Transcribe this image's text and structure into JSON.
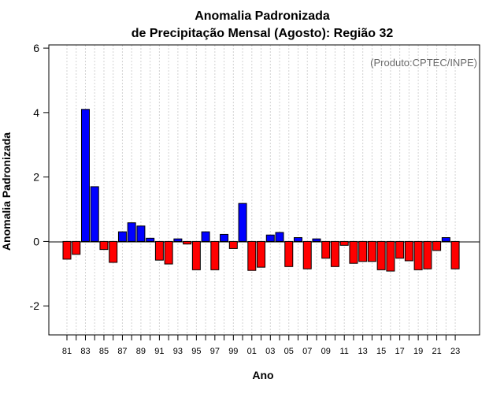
{
  "chart_data": {
    "type": "bar",
    "title_lines": [
      "Anomalia Padronizada",
      "de Precipitação Mensal (Agosto): Região 32"
    ],
    "xlabel": "Ano",
    "ylabel": "Anomalia Padronizada",
    "credit": "(Produto:CPTEC/INPE)",
    "ylim": [
      -2.9,
      6.1
    ],
    "yticks": [
      -2,
      0,
      2,
      4,
      6
    ],
    "grid": true,
    "years": [
      1981,
      1982,
      1983,
      1984,
      1985,
      1986,
      1987,
      1988,
      1989,
      1990,
      1991,
      1992,
      1993,
      1994,
      1995,
      1996,
      1997,
      1998,
      1999,
      2000,
      2001,
      2002,
      2003,
      2004,
      2005,
      2006,
      2007,
      2008,
      2009,
      2010,
      2011,
      2012,
      2013,
      2014,
      2015,
      2016,
      2017,
      2018,
      2019,
      2020,
      2021,
      2022,
      2023
    ],
    "categories": [
      "81",
      "",
      "83",
      "",
      "85",
      "",
      "87",
      "",
      "89",
      "",
      "91",
      "",
      "93",
      "",
      "95",
      "",
      "97",
      "",
      "99",
      "",
      "01",
      "",
      "03",
      "",
      "05",
      "",
      "07",
      "",
      "09",
      "",
      "11",
      "",
      "13",
      "",
      "15",
      "",
      "17",
      "",
      "19",
      "",
      "21",
      "",
      "23"
    ],
    "values": [
      -0.55,
      -0.4,
      4.1,
      1.7,
      -0.25,
      -0.65,
      0.3,
      0.58,
      0.48,
      0.1,
      -0.58,
      -0.7,
      0.08,
      -0.08,
      -0.88,
      0.3,
      -0.88,
      0.22,
      -0.22,
      1.18,
      -0.9,
      -0.8,
      0.2,
      0.28,
      -0.78,
      0.12,
      -0.85,
      0.08,
      -0.52,
      -0.78,
      -0.12,
      -0.68,
      -0.62,
      -0.62,
      -0.88,
      -0.92,
      -0.52,
      -0.6,
      -0.88,
      -0.85,
      -0.28,
      0.12,
      -0.85
    ],
    "colors": {
      "positive": "#0000ff",
      "negative": "#ff0000",
      "edge": "#000000",
      "grid": "#d3d3d3"
    }
  }
}
